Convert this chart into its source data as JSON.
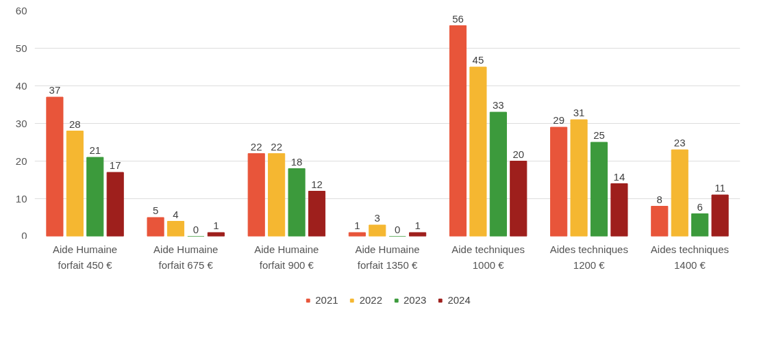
{
  "chart_data": {
    "type": "bar",
    "categories": [
      "Aide Humaine\nforfait 450 €",
      "Aide Humaine\nforfait 675 €",
      "Aide Humaine\nforfait 900 €",
      "Aide Humaine\nforfait 1350 €",
      "Aide techniques\n1000 €",
      "Aides techniques\n1200 €",
      "Aides techniques\n1400 €"
    ],
    "series": [
      {
        "name": "2021",
        "color": "#e8553a",
        "values": [
          37,
          5,
          22,
          1,
          56,
          29,
          8
        ]
      },
      {
        "name": "2022",
        "color": "#f5b731",
        "values": [
          28,
          4,
          22,
          3,
          45,
          31,
          23
        ]
      },
      {
        "name": "2023",
        "color": "#3c9a3c",
        "values": [
          21,
          0,
          18,
          0,
          33,
          25,
          6
        ]
      },
      {
        "name": "2024",
        "color": "#9e1f1c",
        "values": [
          17,
          1,
          12,
          1,
          20,
          14,
          11
        ]
      }
    ],
    "ylim": [
      0,
      60
    ],
    "yticks": [
      0,
      10,
      20,
      30,
      40,
      50,
      60
    ],
    "grid": "y",
    "legend": "bottom",
    "data_labels": true
  }
}
